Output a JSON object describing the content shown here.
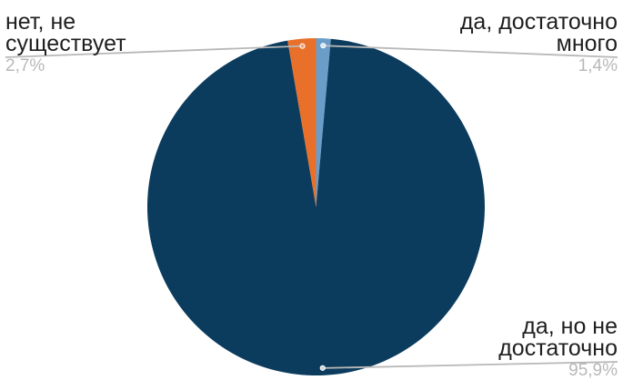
{
  "chart_data": {
    "type": "pie",
    "slices": [
      {
        "label": "да, достаточно много",
        "value": 1.4,
        "display": "1,4%",
        "color": "#6a9ec9"
      },
      {
        "label": "да, но не достаточно",
        "value": 95.9,
        "display": "95,9%",
        "color": "#0b3c5d"
      },
      {
        "label": "нет, не существует",
        "value": 2.7,
        "display": "2,7%",
        "color": "#e8702a"
      }
    ],
    "label_text": {
      "left": {
        "line1": "нет, не",
        "line2": "существует",
        "pct": "2,7%"
      },
      "right_top": {
        "line1": "да, достаточно",
        "line2": "много",
        "pct": "1,4%"
      },
      "right_bottom": {
        "line1": "да, но не",
        "line2": "достаточно",
        "pct": "95,9%"
      }
    },
    "start_angle_deg": 0,
    "direction": "clockwise",
    "leader_line_color": "#b8b8b8"
  }
}
